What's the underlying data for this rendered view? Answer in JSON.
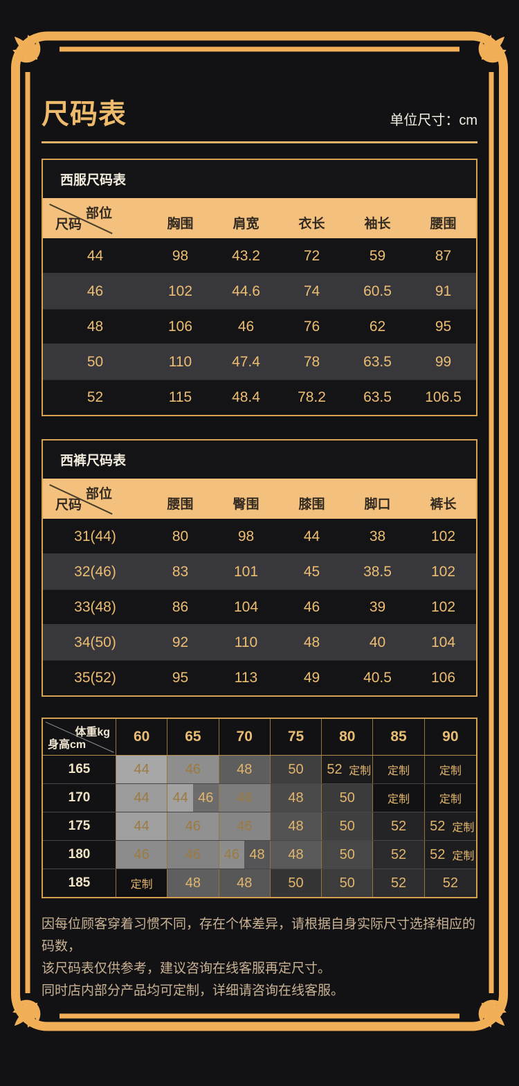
{
  "page": {
    "title": "尺码表",
    "unit_label": "单位尺寸：cm"
  },
  "colors": {
    "gold_accent": "#eebb6d",
    "frame_gold": "#f1af58",
    "table_border": "#d7a254",
    "header_bg": "#f3c17d",
    "row_alt_bg": "#38383c",
    "background": "#121214"
  },
  "suit_table": {
    "title": "西服尺码表",
    "corner": {
      "top": "部位",
      "bottom": "尺码"
    },
    "columns": [
      "胸围",
      "肩宽",
      "衣长",
      "袖长",
      "腰围"
    ],
    "rows": [
      {
        "size": "44",
        "values": [
          "98",
          "43.2",
          "72",
          "59",
          "87"
        ]
      },
      {
        "size": "46",
        "values": [
          "102",
          "44.6",
          "74",
          "60.5",
          "91"
        ]
      },
      {
        "size": "48",
        "values": [
          "106",
          "46",
          "76",
          "62",
          "95"
        ]
      },
      {
        "size": "50",
        "values": [
          "110",
          "47.4",
          "78",
          "63.5",
          "99"
        ]
      },
      {
        "size": "52",
        "values": [
          "115",
          "48.4",
          "78.2",
          "63.5",
          "106.5"
        ]
      }
    ]
  },
  "pants_table": {
    "title": "西裤尺码表",
    "corner": {
      "top": "部位",
      "bottom": "尺码"
    },
    "columns": [
      "腰围",
      "臀围",
      "膝围",
      "脚口",
      "裤长"
    ],
    "rows": [
      {
        "size": "31(44)",
        "values": [
          "80",
          "98",
          "44",
          "38",
          "102"
        ]
      },
      {
        "size": "32(46)",
        "values": [
          "83",
          "101",
          "45",
          "38.5",
          "102"
        ]
      },
      {
        "size": "33(48)",
        "values": [
          "86",
          "104",
          "46",
          "39",
          "102"
        ]
      },
      {
        "size": "34(50)",
        "values": [
          "92",
          "110",
          "48",
          "40",
          "104"
        ]
      },
      {
        "size": "35(52)",
        "values": [
          "95",
          "113",
          "49",
          "40.5",
          "106"
        ]
      }
    ]
  },
  "matrix_table": {
    "corner": {
      "top": "体重kg",
      "bottom": "身高cm"
    },
    "weights": [
      "60",
      "65",
      "70",
      "75",
      "80",
      "85",
      "90"
    ],
    "rows": [
      {
        "height": "165",
        "cells": [
          [
            {
              "t": "44",
              "bg": "#a7a7a7"
            }
          ],
          [
            {
              "t": "46",
              "bg": "#8e8e8e"
            }
          ],
          [
            {
              "t": "48",
              "bg": "#5e5e5e"
            }
          ],
          [
            {
              "t": "50",
              "bg": "#3f3f3f"
            }
          ],
          [
            {
              "t": "52",
              "bg": "#1b1b1d"
            },
            {
              "t": "定制",
              "bg": "#1b1b1d"
            }
          ],
          [
            {
              "t": "定制",
              "bg": "#141416"
            }
          ],
          [
            {
              "t": "定制",
              "bg": "#141416"
            }
          ]
        ]
      },
      {
        "height": "170",
        "cells": [
          [
            {
              "t": "44",
              "bg": "#9b9b9b"
            }
          ],
          [
            {
              "t": "44",
              "bg": "#a2a2a2"
            },
            {
              "t": "46",
              "bg": "#6c6c6c"
            }
          ],
          [
            {
              "t": "46",
              "bg": "#7d7d7d"
            }
          ],
          [
            {
              "t": "48",
              "bg": "#4a4a4a"
            }
          ],
          [
            {
              "t": "50",
              "bg": "#3b3b3b"
            }
          ],
          [
            {
              "t": "定制",
              "bg": "#121214"
            }
          ],
          [
            {
              "t": "定制",
              "bg": "#121214"
            }
          ]
        ]
      },
      {
        "height": "175",
        "cells": [
          [
            {
              "t": "44",
              "bg": "#9f9f9f"
            }
          ],
          [
            {
              "t": "46",
              "bg": "#919191"
            }
          ],
          [
            {
              "t": "46",
              "bg": "#868686"
            }
          ],
          [
            {
              "t": "48",
              "bg": "#535353"
            }
          ],
          [
            {
              "t": "50",
              "bg": "#404040"
            }
          ],
          [
            {
              "t": "52",
              "bg": "#242426"
            }
          ],
          [
            {
              "t": "52",
              "bg": "#1c1c1e"
            },
            {
              "t": "定制",
              "bg": "#1c1c1e"
            }
          ]
        ]
      },
      {
        "height": "180",
        "cells": [
          [
            {
              "t": "46",
              "bg": "#8c8c8c"
            }
          ],
          [
            {
              "t": "46",
              "bg": "#838383"
            }
          ],
          [
            {
              "t": "46",
              "bg": "#8d8d8d"
            },
            {
              "t": "48",
              "bg": "#555557"
            }
          ],
          [
            {
              "t": "48",
              "bg": "#595959"
            }
          ],
          [
            {
              "t": "50",
              "bg": "#474747"
            }
          ],
          [
            {
              "t": "52",
              "bg": "#2a2a2c"
            }
          ],
          [
            {
              "t": "52",
              "bg": "#1d1d1f"
            },
            {
              "t": "定制",
              "bg": "#1d1d1f"
            }
          ]
        ]
      },
      {
        "height": "185",
        "cells": [
          [
            {
              "t": "定制",
              "bg": "#101012"
            }
          ],
          [
            {
              "t": "48",
              "bg": "#5f5f5f"
            }
          ],
          [
            {
              "t": "48",
              "bg": "#575757"
            }
          ],
          [
            {
              "t": "50",
              "bg": "#353535"
            }
          ],
          [
            {
              "t": "50",
              "bg": "#3c3c3c"
            }
          ],
          [
            {
              "t": "52",
              "bg": "#2e2e30"
            }
          ],
          [
            {
              "t": "52",
              "bg": "#262628"
            }
          ]
        ]
      }
    ]
  },
  "footer": {
    "lines": [
      "因每位顾客穿着习惯不同，存在个体差异，请根据自身实际尺寸选择相应的码数，",
      "该尺码表仅供参考，建议咨询在线客服再定尺寸。",
      "同时店内部分产品均可定制，详细请咨询在线客服。"
    ]
  }
}
